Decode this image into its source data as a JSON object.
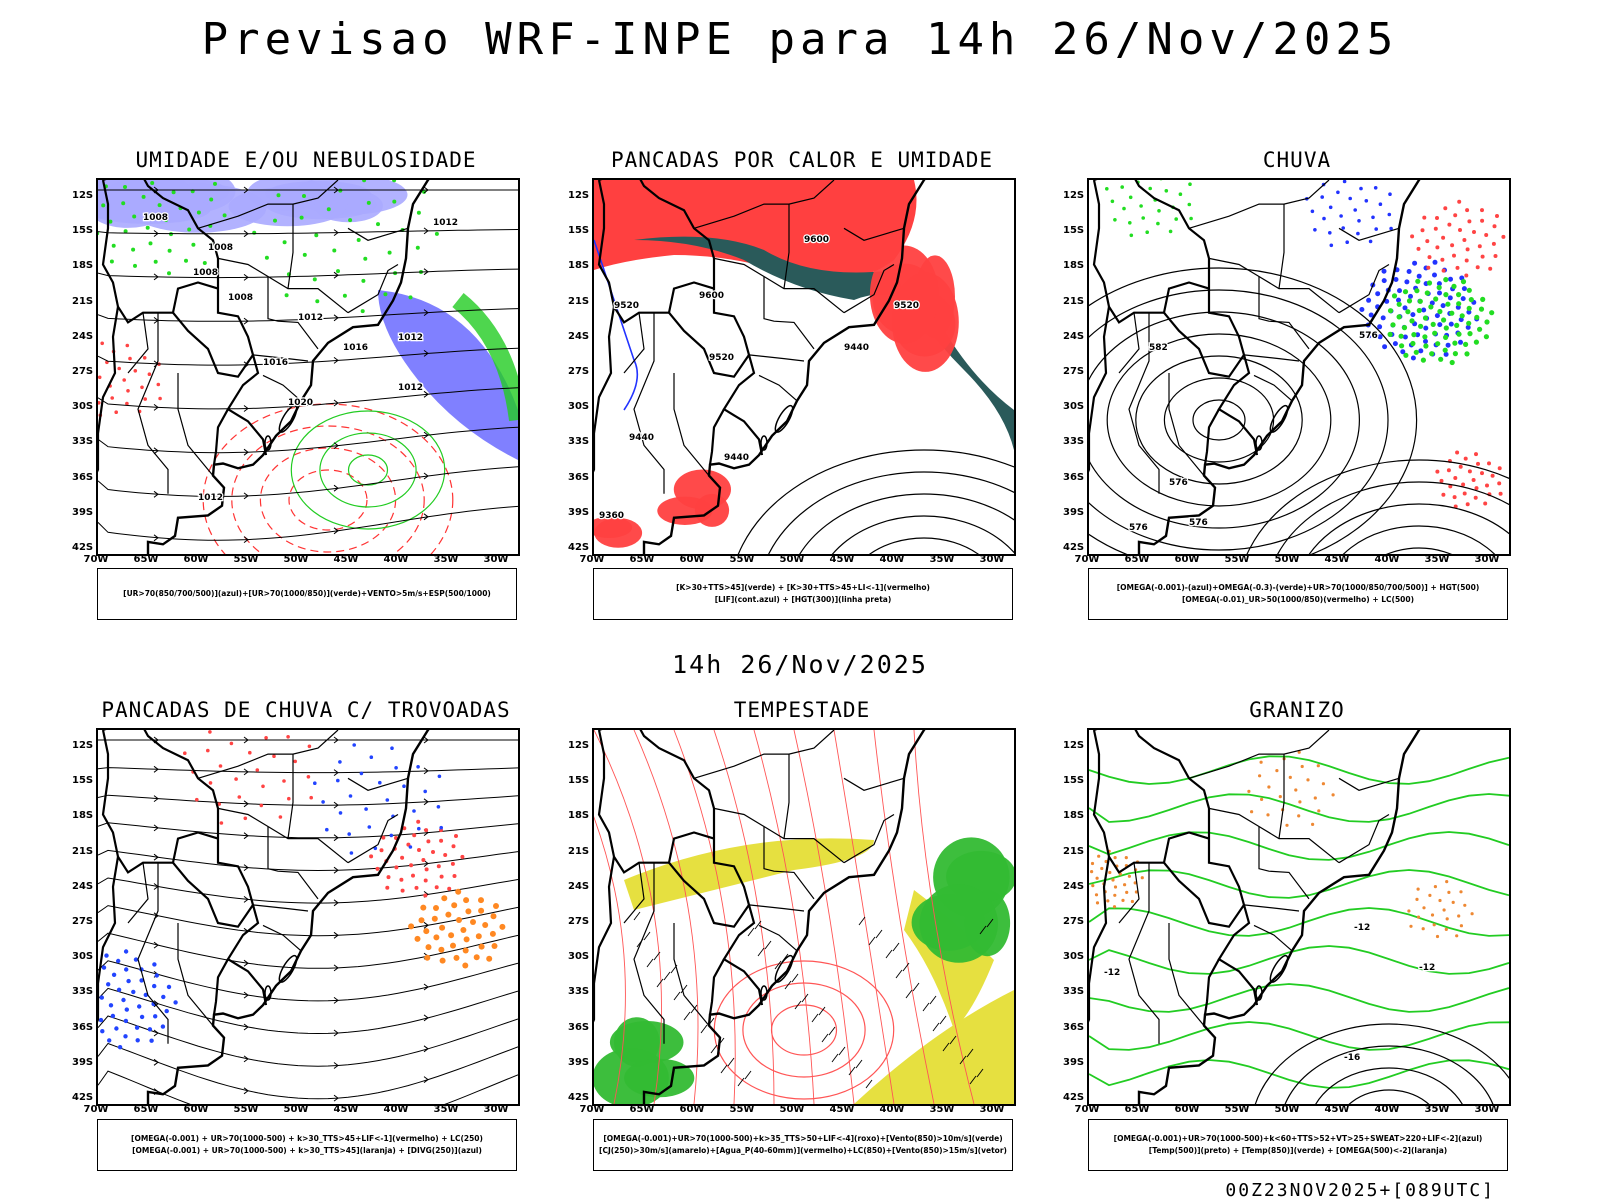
{
  "title": "Previsao WRF-INPE  para 14h 26/Nov/2025",
  "mid_title": "14h 26/Nov/2025",
  "footer": "00Z23NOV2025+[089UTC]",
  "axes": {
    "y_labels": [
      "12S",
      "15S",
      "18S",
      "21S",
      "24S",
      "27S",
      "30S",
      "33S",
      "36S",
      "39S",
      "42S"
    ],
    "x_labels": [
      "70W",
      "65W",
      "60W",
      "55W",
      "50W",
      "45W",
      "40W",
      "35W",
      "30W"
    ]
  },
  "panels": [
    {
      "title": "UMIDADE E/OU NEBULOSIDADE",
      "legend": [
        "[UR>70(850/700/500)](azul)+[UR>70(1000/850)](verde)+VENTO>5m/s+ESP(500/1000)"
      ],
      "contour_labels": [
        "1008",
        "1008",
        "1008",
        "1008",
        "1012",
        "1012",
        "1016",
        "1020",
        "1012",
        "1016",
        "1012",
        "1012"
      ]
    },
    {
      "title": "PANCADAS POR CALOR E UMIDADE",
      "legend": [
        "[K>30+TTS>45](verde) + [K>30+TTS>45+LI<-1](vermelho)",
        "[LIF](cont.azul) + [HGT(300)](linha preta)"
      ],
      "contour_labels": [
        "9600",
        "9600",
        "9520",
        "9520",
        "9520",
        "9440",
        "9440",
        "9440",
        "9360"
      ]
    },
    {
      "title": "CHUVA",
      "legend": [
        "[OMEGA(-0.001)-(azul)+OMEGA(-0.3)-(verde)+UR>70(1000/850/700/500)] + HGT(500)",
        "[OMEGA(-0.01)_UR>50(1000/850)(vermelho) + LC(500)"
      ],
      "contour_labels": [
        "582",
        "576",
        "576",
        "576",
        "576"
      ]
    },
    {
      "title": "PANCADAS DE CHUVA C/ TROVOADAS",
      "legend": [
        "[OMEGA(-0.001) + UR>70(1000-500) + k>30_TTS>45+LIF<-1](vermelho) + LC(250)",
        "[OMEGA(-0.001) + UR>70(1000-500) + k>30_TTS>45](laranja) + [DIVG(250)](azul)"
      ],
      "contour_labels": []
    },
    {
      "title": "TEMPESTADE",
      "legend": [
        "[OMEGA(-0.001)+UR>70(1000-500)+k>35_TTS>50+LIF<-4](roxo)+[Vento(850)>10m/s](verde)",
        "[CJ(250)>30m/s](amarelo)+[Agua_P(40-60mm)](vermelho)+LC(850)+[Vento(850)>15m/s](vetor)"
      ],
      "contour_labels": []
    },
    {
      "title": "GRANIZO",
      "legend": [
        "[OMEGA(-0.001)+UR>70(1000-500)+k<60+TTS>52+VT>25+SWEAT>220+LIF<-2](azul)",
        "[Temp(500)](preto) + [Temp(850)](verde) + [OMEGA(500)<-2](laranja)"
      ],
      "contour_labels": [
        "-12",
        "-12",
        "-12",
        "-16"
      ]
    }
  ]
}
